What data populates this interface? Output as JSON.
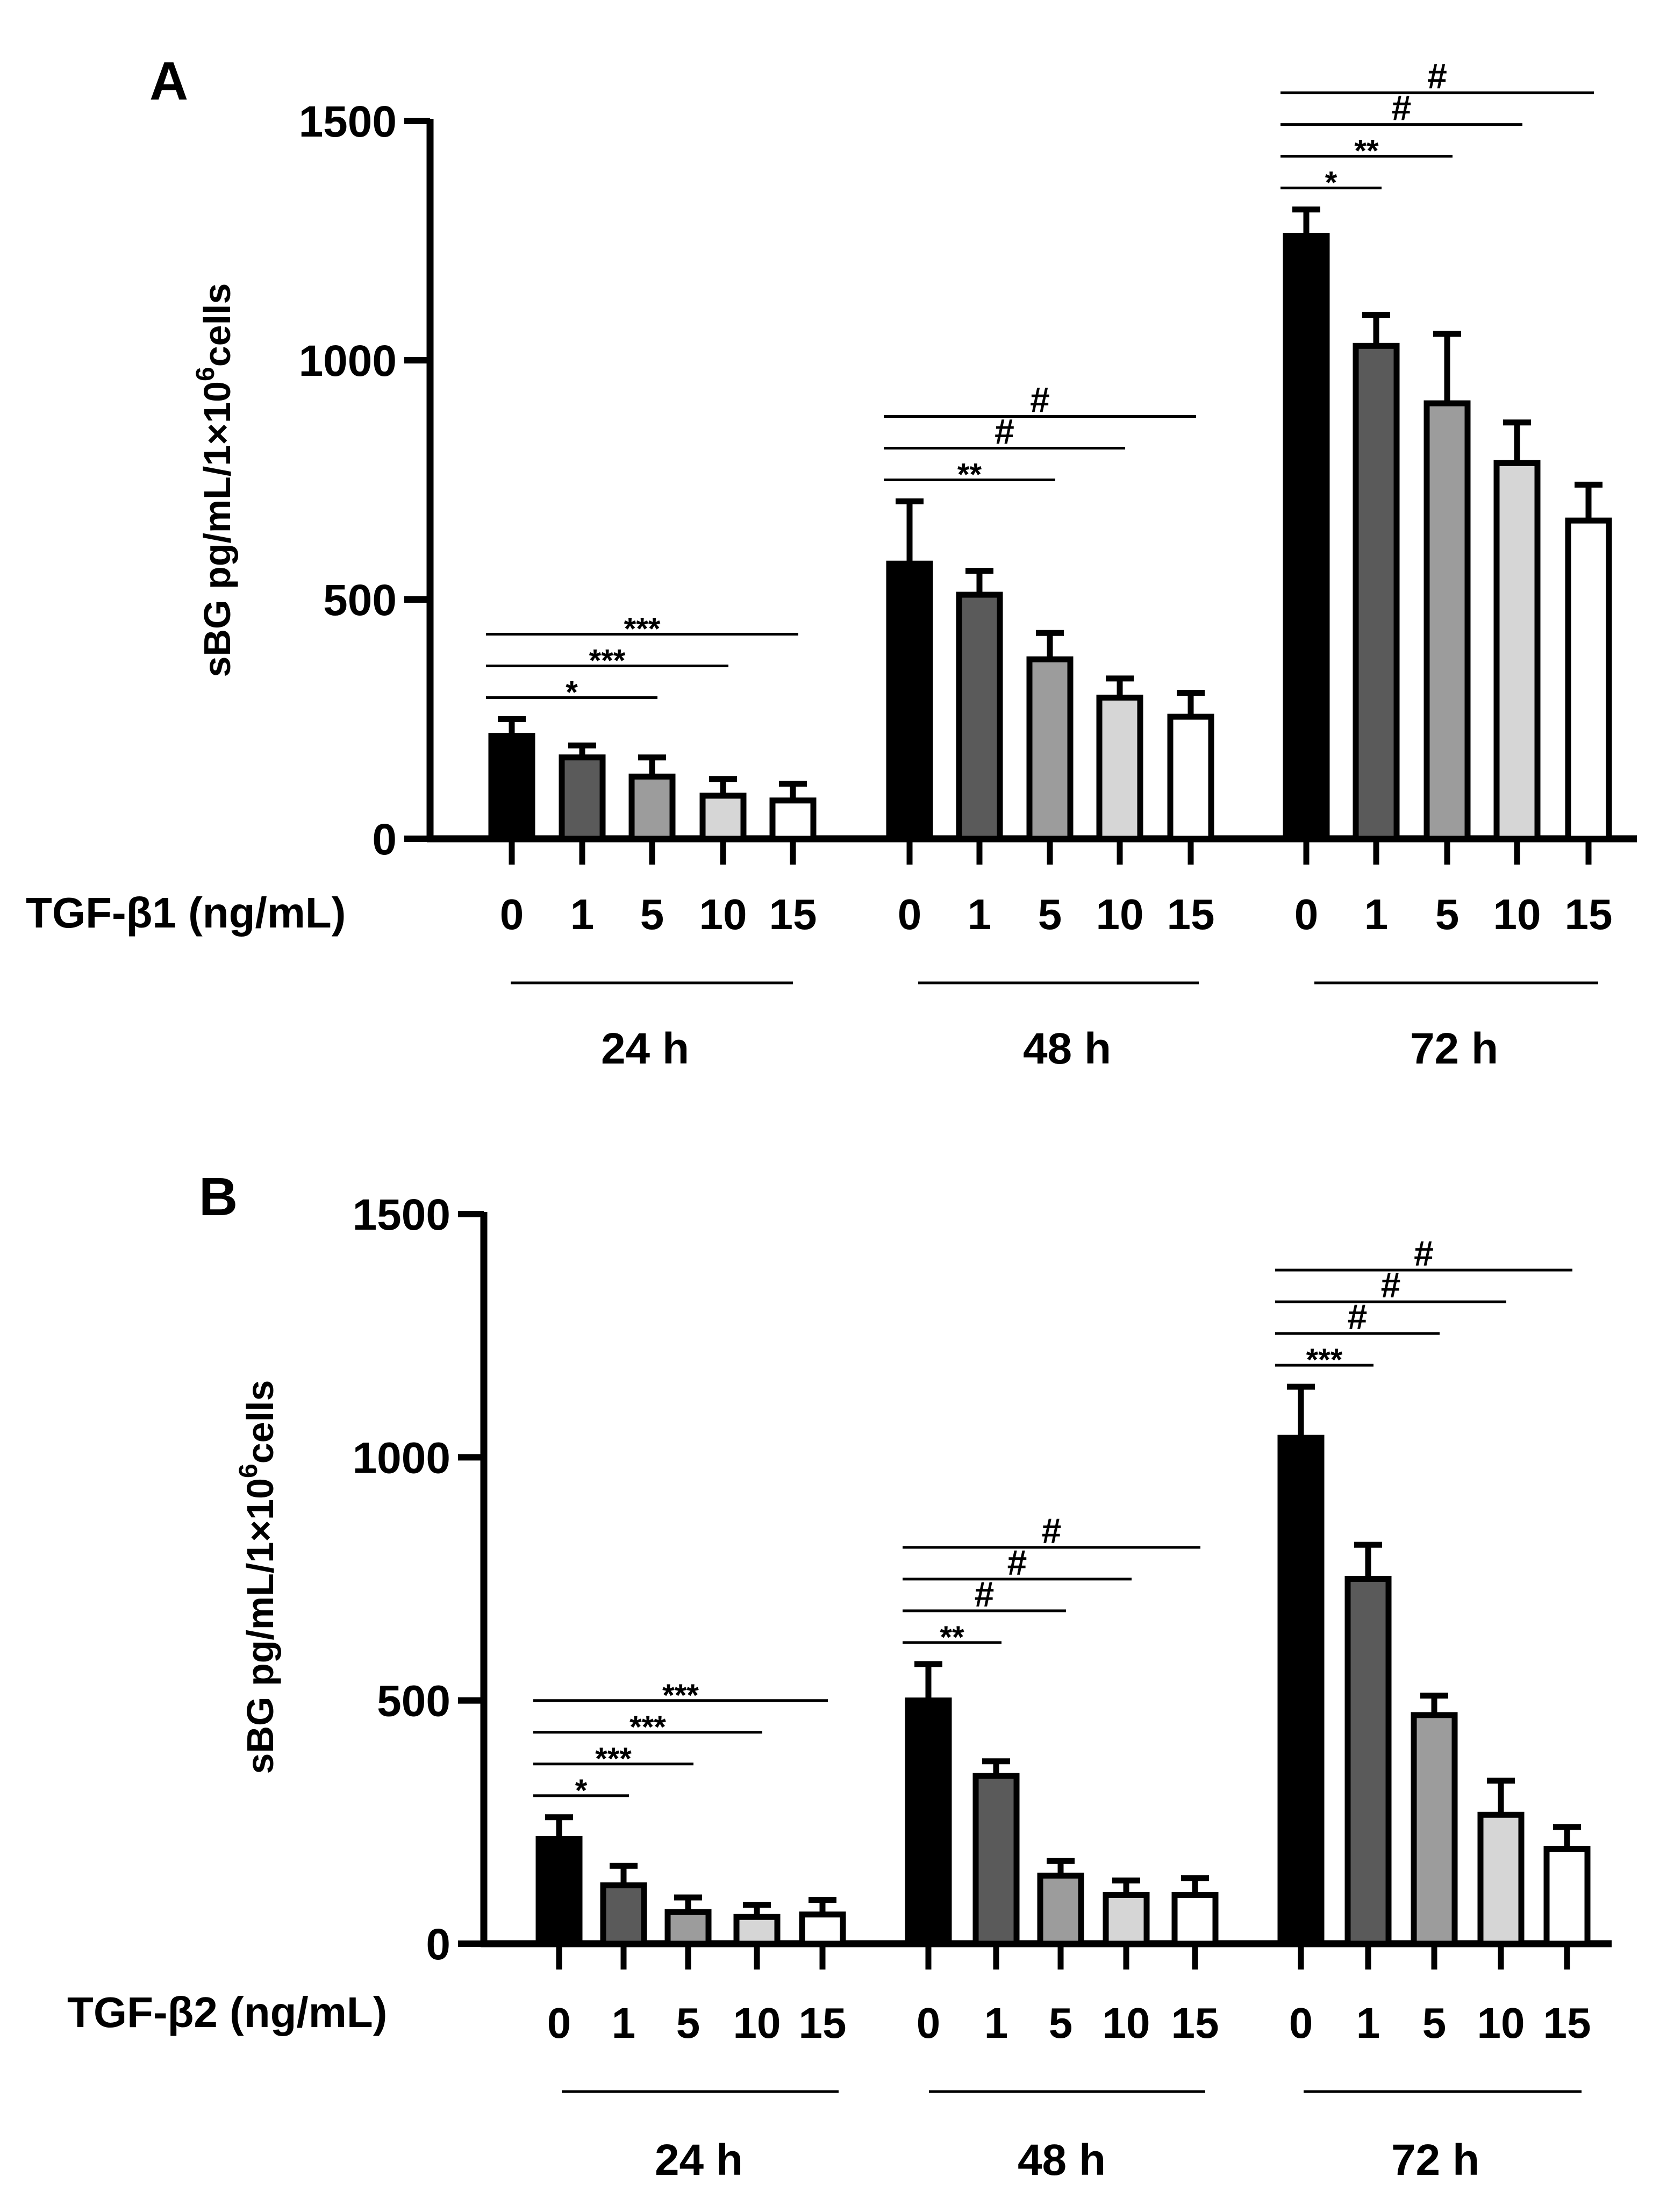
{
  "chart_data": [
    {
      "type": "bar",
      "panel": "A",
      "ylabel_main": "sBG pg/mL/1×10",
      "ylabel_sup": "6",
      "ylabel_tail": "cells",
      "xlabel": "TGF-β1 (ng/mL)",
      "ylim": [
        0,
        1500
      ],
      "yticks": [
        "0",
        "500",
        "1000",
        "1500"
      ],
      "groups": [
        "24 h",
        "48 h",
        "72 h"
      ],
      "categories": [
        "0",
        "1",
        "5",
        "10",
        "15"
      ],
      "series": [
        {
          "name": "24 h",
          "values": [
            215,
            170,
            130,
            90,
            80
          ],
          "errors": [
            35,
            25,
            40,
            35,
            35
          ]
        },
        {
          "name": "48 h",
          "values": [
            575,
            510,
            375,
            295,
            255
          ],
          "errors": [
            130,
            50,
            55,
            40,
            50
          ]
        },
        {
          "name": "72 h",
          "values": [
            1260,
            1030,
            910,
            785,
            665
          ],
          "errors": [
            55,
            65,
            145,
            85,
            75
          ]
        }
      ],
      "significance": [
        {
          "group": 0,
          "from": 0,
          "to": 2,
          "label": "*"
        },
        {
          "group": 0,
          "from": 0,
          "to": 3,
          "label": "***"
        },
        {
          "group": 0,
          "from": 0,
          "to": 4,
          "label": "***"
        },
        {
          "group": 1,
          "from": 0,
          "to": 2,
          "label": "**"
        },
        {
          "group": 1,
          "from": 0,
          "to": 3,
          "label": "#"
        },
        {
          "group": 1,
          "from": 0,
          "to": 4,
          "label": "#"
        },
        {
          "group": 2,
          "from": 0,
          "to": 1,
          "label": "*"
        },
        {
          "group": 2,
          "from": 0,
          "to": 2,
          "label": "**"
        },
        {
          "group": 2,
          "from": 0,
          "to": 3,
          "label": "#"
        },
        {
          "group": 2,
          "from": 0,
          "to": 4,
          "label": "#"
        }
      ]
    },
    {
      "type": "bar",
      "panel": "B",
      "ylabel_main": "sBG pg/mL/1×10",
      "ylabel_sup": "6",
      "ylabel_tail": "cells",
      "xlabel": "TGF-β2 (ng/mL)",
      "ylim": [
        0,
        1500
      ],
      "yticks": [
        "0",
        "500",
        "1000",
        "1500"
      ],
      "groups": [
        "24 h",
        "48 h",
        "72 h"
      ],
      "categories": [
        "0",
        "1",
        "5",
        "10",
        "15"
      ],
      "series": [
        {
          "name": "24 h",
          "values": [
            215,
            120,
            65,
            55,
            60
          ],
          "errors": [
            45,
            40,
            30,
            25,
            30
          ]
        },
        {
          "name": "48 h",
          "values": [
            500,
            345,
            140,
            100,
            100
          ],
          "errors": [
            75,
            30,
            30,
            30,
            35
          ]
        },
        {
          "name": "72 h",
          "values": [
            1040,
            750,
            470,
            265,
            195
          ],
          "errors": [
            105,
            70,
            40,
            70,
            45
          ]
        }
      ],
      "significance": [
        {
          "group": 0,
          "from": 0,
          "to": 1,
          "label": "*"
        },
        {
          "group": 0,
          "from": 0,
          "to": 2,
          "label": "***"
        },
        {
          "group": 0,
          "from": 0,
          "to": 3,
          "label": "***"
        },
        {
          "group": 0,
          "from": 0,
          "to": 4,
          "label": "***"
        },
        {
          "group": 1,
          "from": 0,
          "to": 1,
          "label": "**"
        },
        {
          "group": 1,
          "from": 0,
          "to": 2,
          "label": "#"
        },
        {
          "group": 1,
          "from": 0,
          "to": 3,
          "label": "#"
        },
        {
          "group": 1,
          "from": 0,
          "to": 4,
          "label": "#"
        },
        {
          "group": 2,
          "from": 0,
          "to": 1,
          "label": "***"
        },
        {
          "group": 2,
          "from": 0,
          "to": 2,
          "label": "#"
        },
        {
          "group": 2,
          "from": 0,
          "to": 3,
          "label": "#"
        },
        {
          "group": 2,
          "from": 0,
          "to": 4,
          "label": "#"
        }
      ]
    }
  ],
  "colors": {
    "bar_fills": [
      "#000000",
      "#5a5a5a",
      "#9c9c9c",
      "#d6d6d6",
      "#ffffff"
    ],
    "stroke": "#000000"
  }
}
